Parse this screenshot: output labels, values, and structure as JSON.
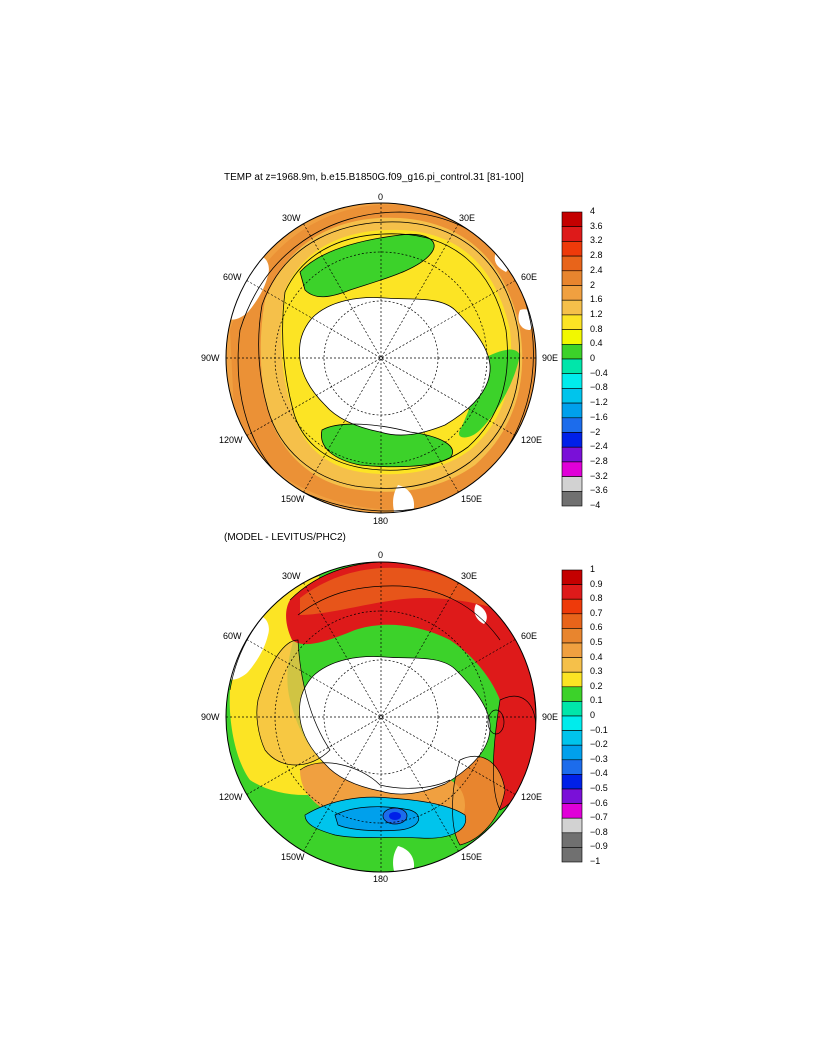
{
  "panels": [
    {
      "title": "TEMP at z=1968.9m, b.e15.B1850G.f09_g16.pi_control.31 [81-100]",
      "lon_labels": [
        "0",
        "30E",
        "60E",
        "90E",
        "120E",
        "150E",
        "180",
        "150W",
        "120W",
        "90W",
        "60W",
        "30W"
      ],
      "colorbar": {
        "labels": [
          "4",
          "3.6",
          "3.2",
          "2.8",
          "2.4",
          "2",
          "1.6",
          "1.2",
          "0.8",
          "0.4",
          "0",
          "−0.4",
          "−0.8",
          "−1.2",
          "−1.6",
          "−2",
          "−2.4",
          "−2.8",
          "−3.2",
          "−3.6",
          "−4"
        ],
        "colors": [
          "#c40000",
          "#de1a1a",
          "#ee3a0a",
          "#e8641a",
          "#e8852e",
          "#f0a040",
          "#f5c04a",
          "#fce424",
          "#f2f800",
          "#3cd22a",
          "#00e6aa",
          "#00ecec",
          "#00c4ec",
          "#00a0ec",
          "#1c6cec",
          "#0020e8",
          "#7a10d8",
          "#e000d8",
          "#d2d2d2",
          "#707070"
        ]
      }
    },
    {
      "title": "(MODEL - LEVITUS/PHC2)",
      "lon_labels": [
        "0",
        "30E",
        "60E",
        "90E",
        "120E",
        "150E",
        "180",
        "150W",
        "120W",
        "90W",
        "60W",
        "30W"
      ],
      "colorbar": {
        "labels": [
          "1",
          "0.9",
          "0.8",
          "0.7",
          "0.6",
          "0.5",
          "0.4",
          "0.3",
          "0.2",
          "0.1",
          "0",
          "−0.1",
          "−0.2",
          "−0.3",
          "−0.4",
          "−0.5",
          "−0.6",
          "−0.7",
          "−0.8",
          "−0.9",
          "−1"
        ],
        "colors": [
          "#c40000",
          "#de1a1a",
          "#ee3a0a",
          "#e8641a",
          "#e8852e",
          "#f0a040",
          "#f5c04a",
          "#fce424",
          "#3cd22a",
          "#00e6aa",
          "#00ecec",
          "#00c4ec",
          "#00a0ec",
          "#1c6cec",
          "#0020e8",
          "#7a10d8",
          "#e000d8",
          "#d2d2d2",
          "#707070",
          "#707070"
        ]
      }
    }
  ]
}
